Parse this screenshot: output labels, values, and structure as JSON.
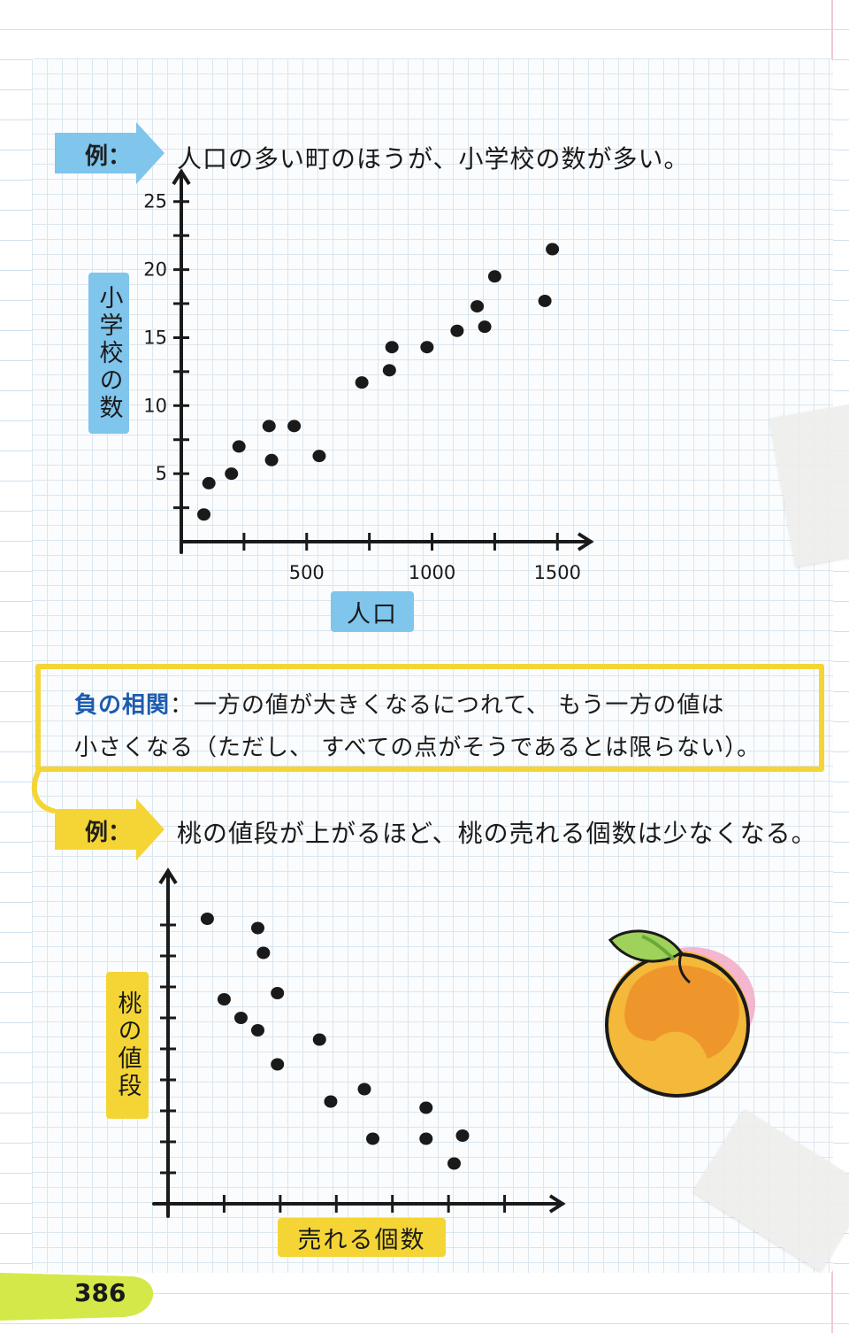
{
  "example1": {
    "tag": "例：",
    "text": "人口の多い町のほうが、小学校の数が多い。"
  },
  "chart_data": [
    {
      "type": "scatter",
      "title": "",
      "xlabel": "人口",
      "ylabel": "小学校の数",
      "xlim": [
        0,
        1700
      ],
      "ylim": [
        0,
        27
      ],
      "x_ticks": [
        "500",
        "1000",
        "1500"
      ],
      "y_ticks": [
        "5",
        "10",
        "15",
        "20",
        "25"
      ],
      "grid": false,
      "points": [
        {
          "x": 90,
          "y": 2
        },
        {
          "x": 110,
          "y": 4.3
        },
        {
          "x": 200,
          "y": 5
        },
        {
          "x": 230,
          "y": 7
        },
        {
          "x": 350,
          "y": 8.5
        },
        {
          "x": 360,
          "y": 6
        },
        {
          "x": 450,
          "y": 8.5
        },
        {
          "x": 550,
          "y": 6.3
        },
        {
          "x": 720,
          "y": 11.7
        },
        {
          "x": 830,
          "y": 12.6
        },
        {
          "x": 840,
          "y": 14.3
        },
        {
          "x": 980,
          "y": 14.3
        },
        {
          "x": 1100,
          "y": 15.5
        },
        {
          "x": 1180,
          "y": 17.3
        },
        {
          "x": 1210,
          "y": 15.8
        },
        {
          "x": 1250,
          "y": 19.5
        },
        {
          "x": 1450,
          "y": 17.7
        },
        {
          "x": 1480,
          "y": 21.5
        }
      ]
    },
    {
      "type": "scatter",
      "title": "",
      "xlabel": "売れる個数",
      "ylabel": "桃の値段",
      "xlim": [
        0,
        7
      ],
      "ylim": [
        0,
        10
      ],
      "x_ticks": [],
      "y_ticks": [],
      "grid": false,
      "points": [
        {
          "x": 0.7,
          "y": 9.2
        },
        {
          "x": 1.0,
          "y": 6.6
        },
        {
          "x": 1.3,
          "y": 6.0
        },
        {
          "x": 1.6,
          "y": 5.6
        },
        {
          "x": 1.6,
          "y": 8.9
        },
        {
          "x": 1.7,
          "y": 8.1
        },
        {
          "x": 1.95,
          "y": 6.8
        },
        {
          "x": 1.95,
          "y": 4.5
        },
        {
          "x": 2.7,
          "y": 5.3
        },
        {
          "x": 2.9,
          "y": 3.3
        },
        {
          "x": 3.5,
          "y": 3.7
        },
        {
          "x": 3.65,
          "y": 2.1
        },
        {
          "x": 4.6,
          "y": 3.1
        },
        {
          "x": 4.6,
          "y": 2.1
        },
        {
          "x": 5.1,
          "y": 1.3
        },
        {
          "x": 5.25,
          "y": 2.2
        }
      ]
    }
  ],
  "definition": {
    "term": "負の相関",
    "line1_rest": "：一方の値が大きくなるにつれて、 もう一方の値は",
    "line2": "小さくなる（ただし、 すべての点がそうであるとは限らない）。"
  },
  "example2": {
    "tag": "例：",
    "text": "桃の値段が上がるほど、桃の売れる個数は少なくなる。"
  },
  "page_number": "386",
  "colors": {
    "blue_tag": "#7fc5ec",
    "yellow_tag": "#f4d535",
    "term_blue": "#1d5cae",
    "page_bar": "#d5e84a"
  },
  "icons": [
    "peach-illustration"
  ]
}
